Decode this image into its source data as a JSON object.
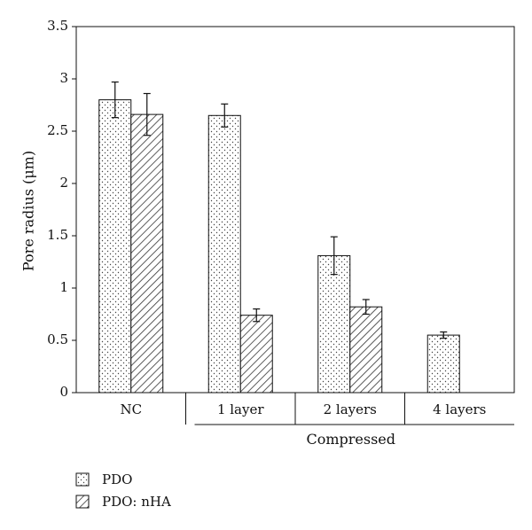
{
  "chart_data": {
    "type": "bar",
    "categories": [
      "NC",
      "1 layer",
      "2 layers",
      "4 layers"
    ],
    "group_label": "Compressed",
    "ylabel": "Pore radius (μm)",
    "xlabel": "",
    "ylim": [
      0,
      3.5
    ],
    "yticks": [
      "0",
      "0.5",
      "1",
      "1.5",
      "2",
      "2.5",
      "3",
      "3.5"
    ],
    "grid": false,
    "legend_position": "bottom-left",
    "series": [
      {
        "name": "PDO",
        "pattern": "dots",
        "values": [
          2.8,
          2.65,
          1.31,
          0.55
        ],
        "errors": [
          0.17,
          0.11,
          0.18,
          0.03
        ]
      },
      {
        "name": "PDO: nHA",
        "pattern": "diagonal-hatch",
        "values": [
          2.66,
          0.74,
          0.82,
          null
        ],
        "errors": [
          0.2,
          0.06,
          0.07,
          null
        ]
      }
    ],
    "colors": {
      "axis": "#111111",
      "bar_fill": "#ffffff",
      "pattern": "#333333"
    }
  }
}
